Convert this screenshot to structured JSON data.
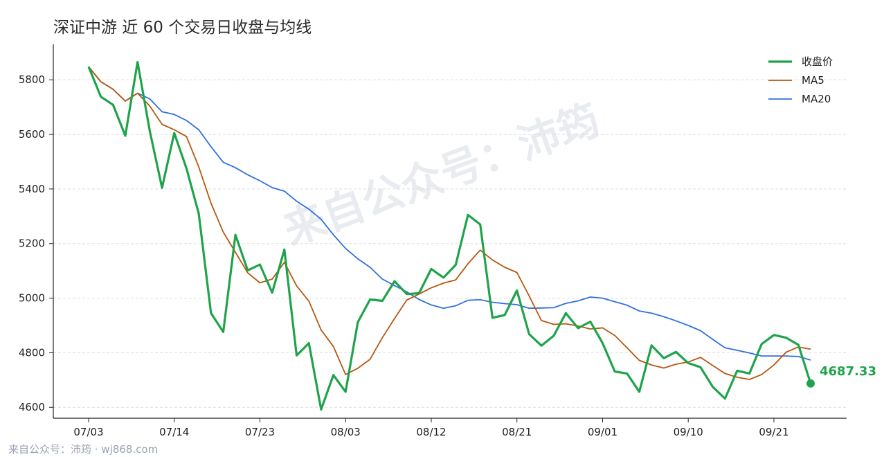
{
  "title": "深证中游 近 60 个交易日收盘与均线",
  "credit": "来自公众号：沛筠 · wj868.com",
  "watermark": "来自公众号：沛筠",
  "last_value_label": "4687.33",
  "colors": {
    "close": "#1fa34a",
    "ma5": "#b8560d",
    "ma20": "#2f6fe0",
    "grid": "#dddddd",
    "axis": "#222222"
  },
  "chart_data": {
    "type": "line",
    "title": "深证中游 近 60 个交易日收盘与均线",
    "xlabel": "",
    "ylabel": "",
    "ylim": [
      4560,
      5930
    ],
    "yticks": [
      4600,
      4800,
      5000,
      5200,
      5400,
      5600,
      5800
    ],
    "xtick_labels": [
      "07/03",
      "07/14",
      "07/23",
      "08/03",
      "08/12",
      "08/21",
      "09/01",
      "09/10",
      "09/21"
    ],
    "xtick_indices": [
      0,
      7,
      14,
      21,
      28,
      35,
      42,
      49,
      56
    ],
    "grid": true,
    "legend_position": "top-right",
    "series": [
      {
        "name": "收盘价",
        "values": [
          5848,
          5738,
          5708,
          5595,
          5865,
          5612,
          5404,
          5605,
          5475,
          5310,
          4945,
          4876,
          5232,
          5102,
          5123,
          5020,
          5178,
          4790,
          4835,
          4592,
          4718,
          4657,
          4912,
          4995,
          4990,
          5062,
          5015,
          5018,
          5107,
          5075,
          5122,
          5305,
          5270,
          4928,
          4938,
          5028,
          4868,
          4826,
          4862,
          4945,
          4890,
          4914,
          4835,
          4731,
          4724,
          4657,
          4827,
          4780,
          4803,
          4762,
          4747,
          4675,
          4632,
          4734,
          4724,
          4832,
          4865,
          4855,
          4829,
          4687.33
        ]
      },
      {
        "name": "MA5",
        "values": [
          5848,
          5793,
          5765,
          5722,
          5751,
          5704,
          5637,
          5617,
          5592,
          5481,
          5348,
          5242,
          5168,
          5093,
          5056,
          5070,
          5131,
          5045,
          4989,
          4883,
          4823,
          4720,
          4743,
          4776,
          4855,
          4925,
          4993,
          5015,
          5038,
          5055,
          5067,
          5126,
          5176,
          5140,
          5113,
          5094,
          5008,
          4918,
          4904,
          4906,
          4898,
          4887,
          4891,
          4863,
          4818,
          4772,
          4755,
          4744,
          4758,
          4766,
          4783,
          4753,
          4724,
          4710,
          4702,
          4720,
          4755,
          4802,
          4821,
          4813
        ]
      },
      {
        "name": "MA20",
        "values": [
          5848,
          5793,
          5765,
          5722,
          5751,
          5730,
          5683,
          5673,
          5651,
          5617,
          5555,
          5498,
          5478,
          5452,
          5430,
          5405,
          5392,
          5355,
          5326,
          5289,
          5232,
          5182,
          5144,
          5113,
          5070,
          5046,
          5023,
          4995,
          4975,
          4963,
          4972,
          4992,
          4994,
          4985,
          4980,
          4976,
          4963,
          4964,
          4965,
          4981,
          4990,
          5004,
          5000,
          4987,
          4974,
          4953,
          4945,
          4932,
          4917,
          4900,
          4881,
          4849,
          4818,
          4809,
          4799,
          4788,
          4788,
          4788,
          4786,
          4773
        ]
      }
    ]
  }
}
